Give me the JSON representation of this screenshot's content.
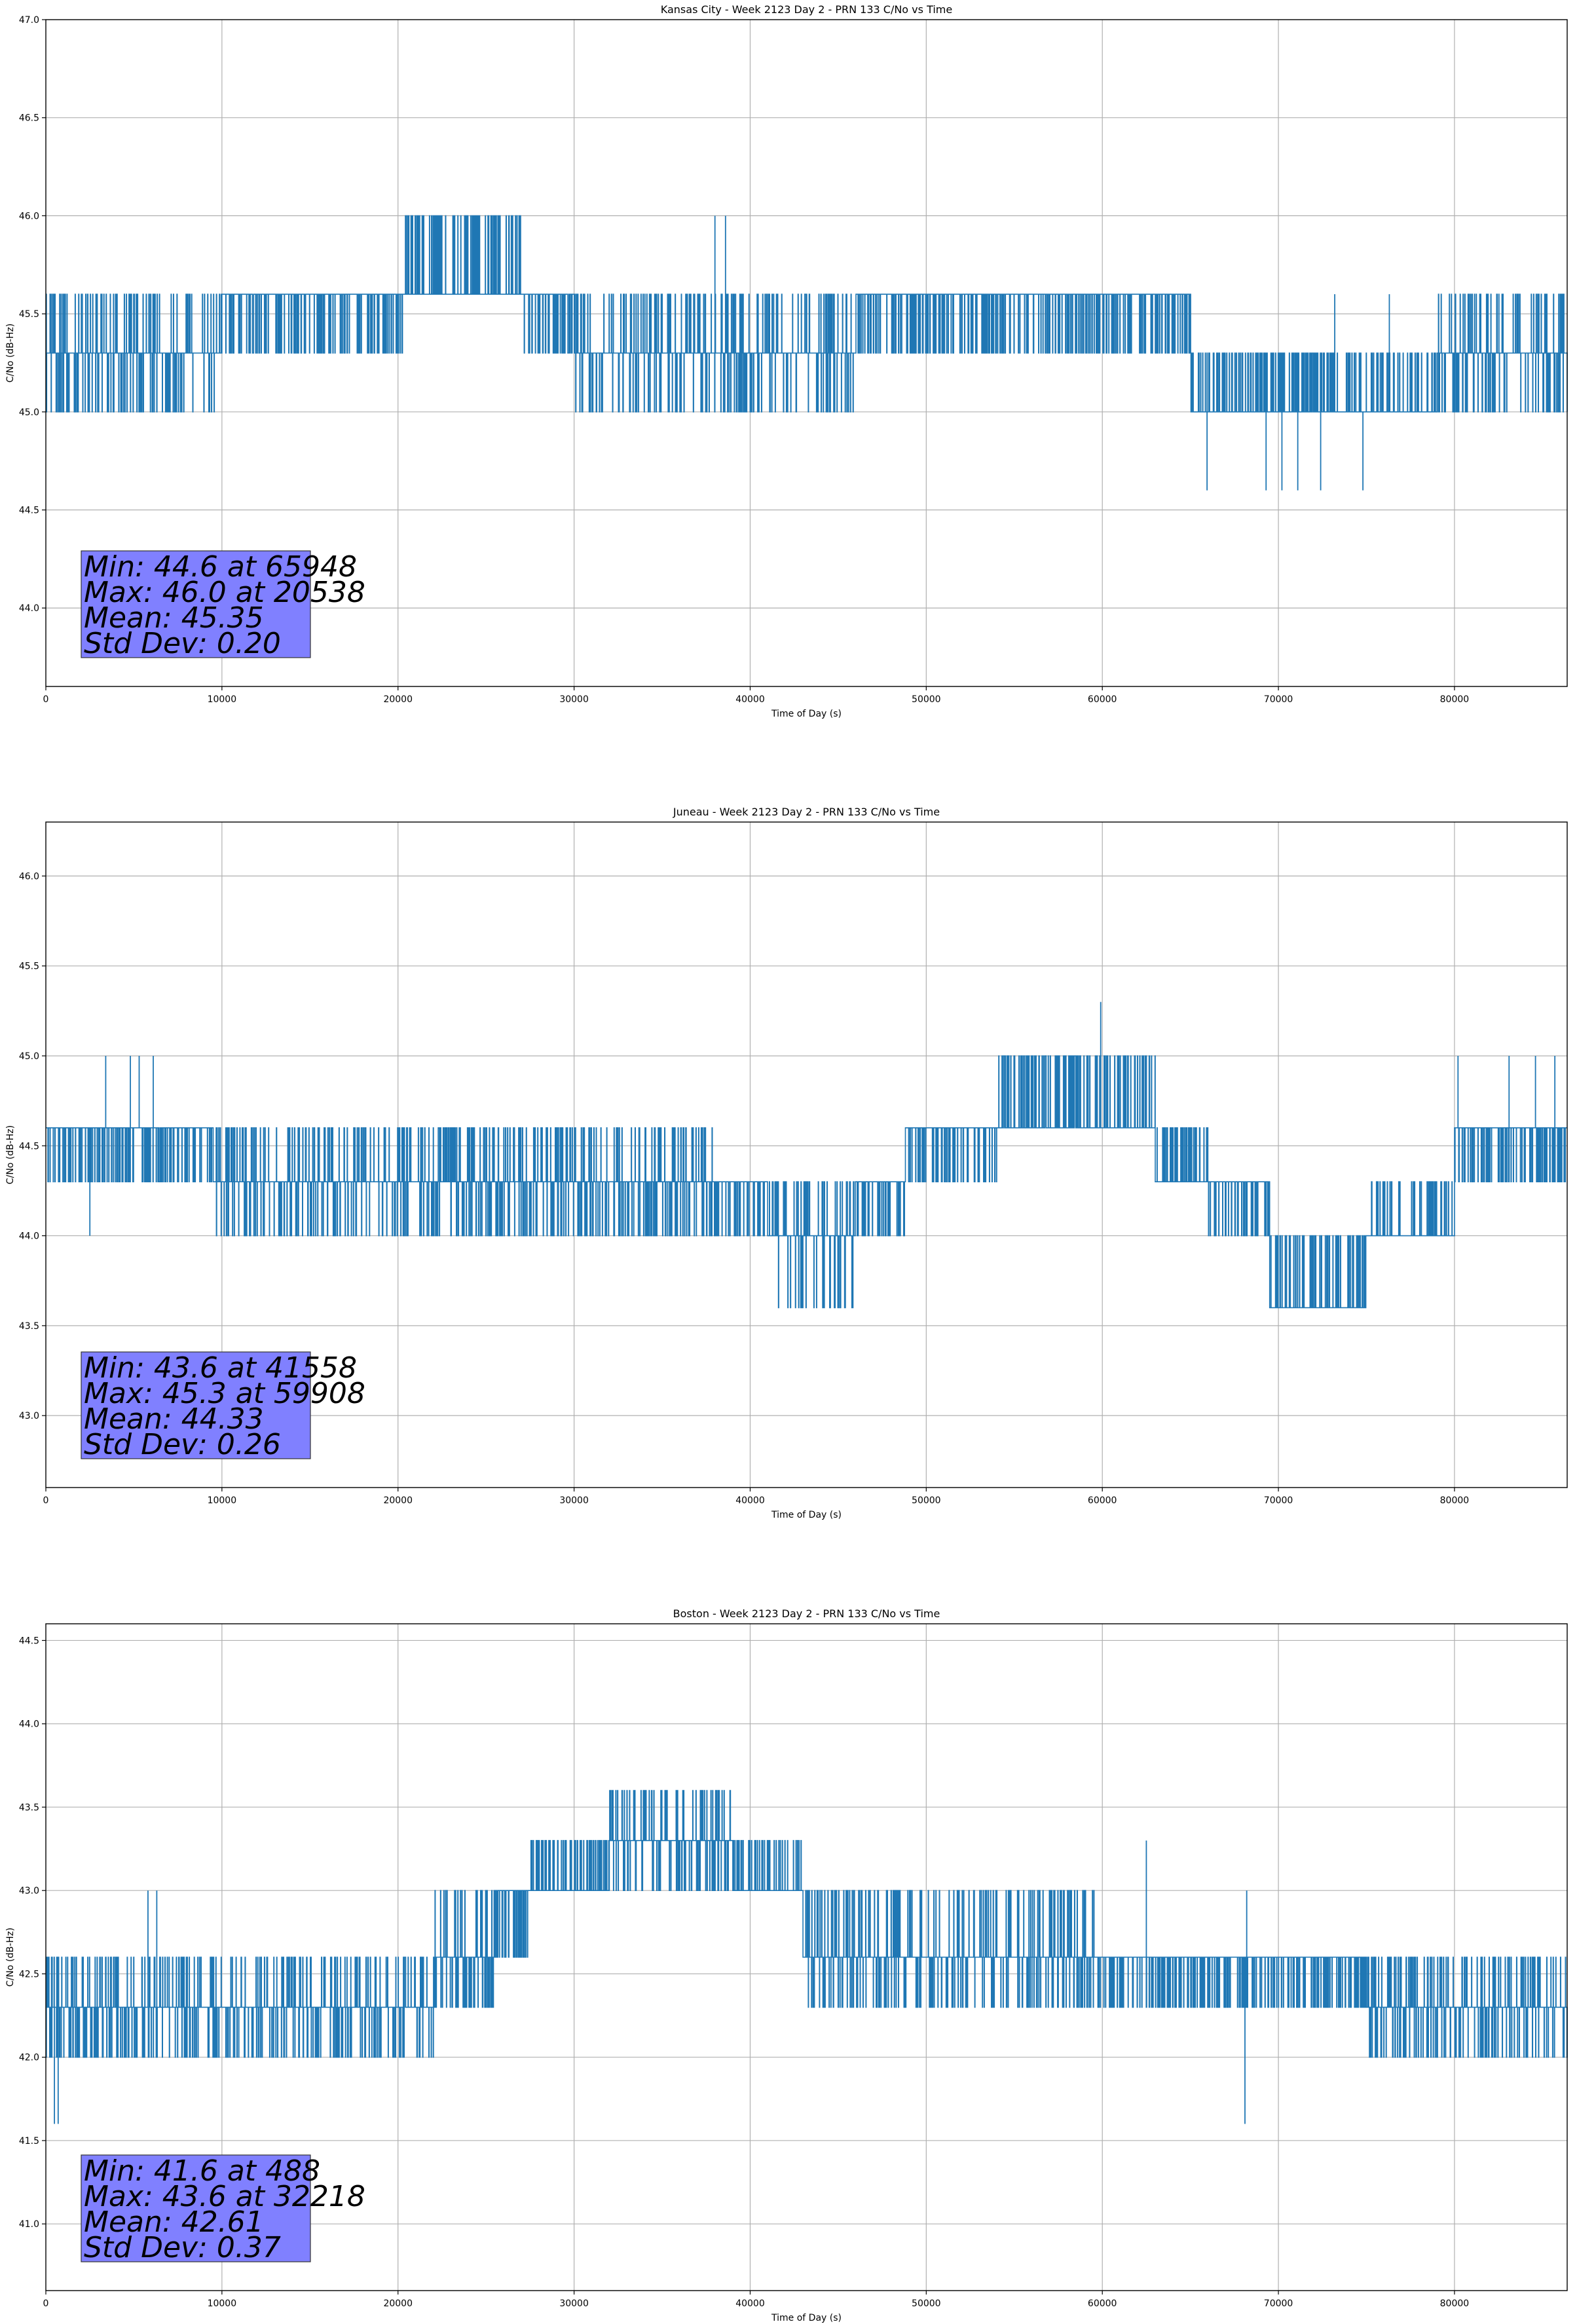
{
  "figure": {
    "series_color": "#1f77b4",
    "stats_box_color": "#8080ff"
  },
  "chart_data": [
    {
      "type": "line",
      "title": "Kansas City - Week 2123 Day 2 - PRN 133 C/No vs Time",
      "xlabel": "Time of Day (s)",
      "ylabel": "C/No (dB-Hz)",
      "xlim": [
        0,
        86400
      ],
      "ylim": [
        43.6,
        47.0
      ],
      "xticks": [
        0,
        10000,
        20000,
        30000,
        40000,
        50000,
        60000,
        70000,
        80000
      ],
      "xtick_labels": [
        "0",
        "10000",
        "20000",
        "30000",
        "40000",
        "50000",
        "60000",
        "70000",
        "80000"
      ],
      "yticks": [
        44.0,
        44.5,
        45.0,
        45.5,
        46.0,
        46.5,
        47.0
      ],
      "ytick_labels": [
        "44.0",
        "44.5",
        "45.0",
        "45.5",
        "46.0",
        "46.5",
        "47.0"
      ],
      "grid": true,
      "levels": [
        45.0,
        45.3,
        45.6,
        46.0
      ],
      "segments": [
        {
          "x": [
            0,
            10000
          ],
          "range": [
            45.0,
            45.6
          ],
          "main": 45.3
        },
        {
          "x": [
            10000,
            20400
          ],
          "range": [
            45.3,
            45.6
          ],
          "main": 45.6
        },
        {
          "x": [
            20400,
            27000
          ],
          "range": [
            45.6,
            46.0
          ],
          "main": 45.6
        },
        {
          "x": [
            27000,
            30000
          ],
          "range": [
            45.3,
            45.6
          ],
          "main": 45.6
        },
        {
          "x": [
            30000,
            46000
          ],
          "range": [
            45.0,
            45.6
          ],
          "main": 45.3
        },
        {
          "x": [
            46000,
            65000
          ],
          "range": [
            45.3,
            45.6
          ],
          "main": 45.6
        },
        {
          "x": [
            65000,
            79000
          ],
          "range": [
            45.0,
            45.3
          ],
          "main": 45.0
        },
        {
          "x": [
            79000,
            86400
          ],
          "range": [
            45.0,
            45.6
          ],
          "main": 45.3
        }
      ],
      "spikes": [
        {
          "x": 38000,
          "y": 46.0
        },
        {
          "x": 38600,
          "y": 46.0
        },
        {
          "x": 65948,
          "y": 44.6
        },
        {
          "x": 69300,
          "y": 44.6
        },
        {
          "x": 70200,
          "y": 44.6
        },
        {
          "x": 71100,
          "y": 44.6
        },
        {
          "x": 72400,
          "y": 44.6
        },
        {
          "x": 74800,
          "y": 44.6
        },
        {
          "x": 73200,
          "y": 45.6
        },
        {
          "x": 76300,
          "y": 45.6
        }
      ],
      "stats": {
        "lines": [
          "Min: 44.6 at 65948",
          "Max: 46.0 at 20538",
          "Mean: 45.35",
          "Std Dev: 0.20"
        ],
        "min": 44.6,
        "min_time": 65948,
        "max": 46.0,
        "max_time": 20538,
        "mean": 45.35,
        "std": 0.2
      }
    },
    {
      "type": "line",
      "title": "Juneau - Week 2123 Day 2 - PRN 133 C/No vs Time",
      "xlabel": "Time of Day (s)",
      "ylabel": "C/No (dB-Hz)",
      "xlim": [
        0,
        86400
      ],
      "ylim": [
        42.6,
        46.3
      ],
      "xticks": [
        0,
        10000,
        20000,
        30000,
        40000,
        50000,
        60000,
        70000,
        80000
      ],
      "xtick_labels": [
        "0",
        "10000",
        "20000",
        "30000",
        "40000",
        "50000",
        "60000",
        "70000",
        "80000"
      ],
      "yticks": [
        43.0,
        43.5,
        44.0,
        44.5,
        45.0,
        45.5,
        46.0
      ],
      "ytick_labels": [
        "43.0",
        "43.5",
        "44.0",
        "44.5",
        "45.0",
        "45.5",
        "46.0"
      ],
      "grid": true,
      "levels": [
        43.6,
        44.0,
        44.3,
        44.6,
        45.0
      ],
      "segments": [
        {
          "x": [
            0,
            9500
          ],
          "range": [
            44.3,
            44.6
          ],
          "main": 44.6
        },
        {
          "x": [
            9500,
            38000
          ],
          "range": [
            44.0,
            44.6
          ],
          "main": 44.3
        },
        {
          "x": [
            38000,
            41000
          ],
          "range": [
            44.0,
            44.3
          ],
          "main": 44.3
        },
        {
          "x": [
            41000,
            46000
          ],
          "range": [
            43.6,
            44.3
          ],
          "main": 44.0
        },
        {
          "x": [
            46000,
            48800
          ],
          "range": [
            44.0,
            44.3
          ],
          "main": 44.3
        },
        {
          "x": [
            48800,
            54000
          ],
          "range": [
            44.3,
            44.6
          ],
          "main": 44.6
        },
        {
          "x": [
            54000,
            63000
          ],
          "range": [
            44.6,
            45.0
          ],
          "main": 44.6
        },
        {
          "x": [
            63000,
            66000
          ],
          "range": [
            44.3,
            44.6
          ],
          "main": 44.3
        },
        {
          "x": [
            66000,
            69500
          ],
          "range": [
            44.0,
            44.3
          ],
          "main": 44.3
        },
        {
          "x": [
            69500,
            75000
          ],
          "range": [
            43.6,
            44.0
          ],
          "main": 43.6
        },
        {
          "x": [
            75000,
            80000
          ],
          "range": [
            44.0,
            44.3
          ],
          "main": 44.0
        },
        {
          "x": [
            80000,
            86400
          ],
          "range": [
            44.3,
            44.6
          ],
          "main": 44.6
        }
      ],
      "spikes": [
        {
          "x": 3400,
          "y": 45.0
        },
        {
          "x": 4800,
          "y": 45.0
        },
        {
          "x": 5300,
          "y": 45.0
        },
        {
          "x": 6100,
          "y": 45.0
        },
        {
          "x": 2500,
          "y": 44.0
        },
        {
          "x": 59908,
          "y": 45.3
        },
        {
          "x": 80200,
          "y": 45.0
        },
        {
          "x": 83100,
          "y": 45.0
        },
        {
          "x": 84600,
          "y": 45.0
        },
        {
          "x": 85700,
          "y": 45.0
        }
      ],
      "stats": {
        "lines": [
          "Min: 43.6 at 41558",
          "Max: 45.3 at 59908",
          "Mean: 44.33",
          "Std Dev: 0.26"
        ],
        "min": 43.6,
        "min_time": 41558,
        "max": 45.3,
        "max_time": 59908,
        "mean": 44.33,
        "std": 0.26
      }
    },
    {
      "type": "line",
      "title": "Boston - Week 2123 Day 2 - PRN 133 C/No vs Time",
      "xlabel": "Time of Day (s)",
      "ylabel": "C/No (dB-Hz)",
      "xlim": [
        0,
        86400
      ],
      "ylim": [
        40.6,
        44.6
      ],
      "xticks": [
        0,
        10000,
        20000,
        30000,
        40000,
        50000,
        60000,
        70000,
        80000
      ],
      "xtick_labels": [
        "0",
        "10000",
        "20000",
        "30000",
        "40000",
        "50000",
        "60000",
        "70000",
        "80000"
      ],
      "yticks": [
        41.0,
        41.5,
        42.0,
        42.5,
        43.0,
        43.5,
        44.0,
        44.5
      ],
      "ytick_labels": [
        "41.0",
        "41.5",
        "42.0",
        "42.5",
        "43.0",
        "43.5",
        "44.0",
        "44.5"
      ],
      "grid": true,
      "levels": [
        41.6,
        42.0,
        42.3,
        42.6,
        43.0,
        43.3,
        43.6
      ],
      "segments": [
        {
          "x": [
            0,
            1500
          ],
          "range": [
            42.0,
            42.6
          ],
          "main": 42.3
        },
        {
          "x": [
            1500,
            22000
          ],
          "range": [
            42.0,
            42.6
          ],
          "main": 42.3
        },
        {
          "x": [
            22000,
            25500
          ],
          "range": [
            42.3,
            43.0
          ],
          "main": 42.6
        },
        {
          "x": [
            25500,
            27500
          ],
          "range": [
            42.6,
            43.0
          ],
          "main": 43.0
        },
        {
          "x": [
            27500,
            32000
          ],
          "range": [
            43.0,
            43.3
          ],
          "main": 43.0
        },
        {
          "x": [
            32000,
            39000
          ],
          "range": [
            43.0,
            43.6
          ],
          "main": 43.3
        },
        {
          "x": [
            39000,
            43000
          ],
          "range": [
            43.0,
            43.3
          ],
          "main": 43.0
        },
        {
          "x": [
            43000,
            60000
          ],
          "range": [
            42.3,
            43.0
          ],
          "main": 42.6
        },
        {
          "x": [
            60000,
            75000
          ],
          "range": [
            42.3,
            42.6
          ],
          "main": 42.6
        },
        {
          "x": [
            75000,
            86400
          ],
          "range": [
            42.0,
            42.6
          ],
          "main": 42.3
        }
      ],
      "spikes": [
        {
          "x": 488,
          "y": 41.6
        },
        {
          "x": 700,
          "y": 41.6
        },
        {
          "x": 5800,
          "y": 43.0
        },
        {
          "x": 6300,
          "y": 43.0
        },
        {
          "x": 68100,
          "y": 41.6
        },
        {
          "x": 62500,
          "y": 43.3
        },
        {
          "x": 68200,
          "y": 43.0
        }
      ],
      "stats": {
        "lines": [
          "Min: 41.6 at 488",
          "Max: 43.6 at 32218",
          "Mean: 42.61",
          "Std Dev: 0.37"
        ],
        "min": 41.6,
        "min_time": 488,
        "max": 43.6,
        "max_time": 32218,
        "mean": 42.61,
        "std": 0.37
      }
    }
  ]
}
